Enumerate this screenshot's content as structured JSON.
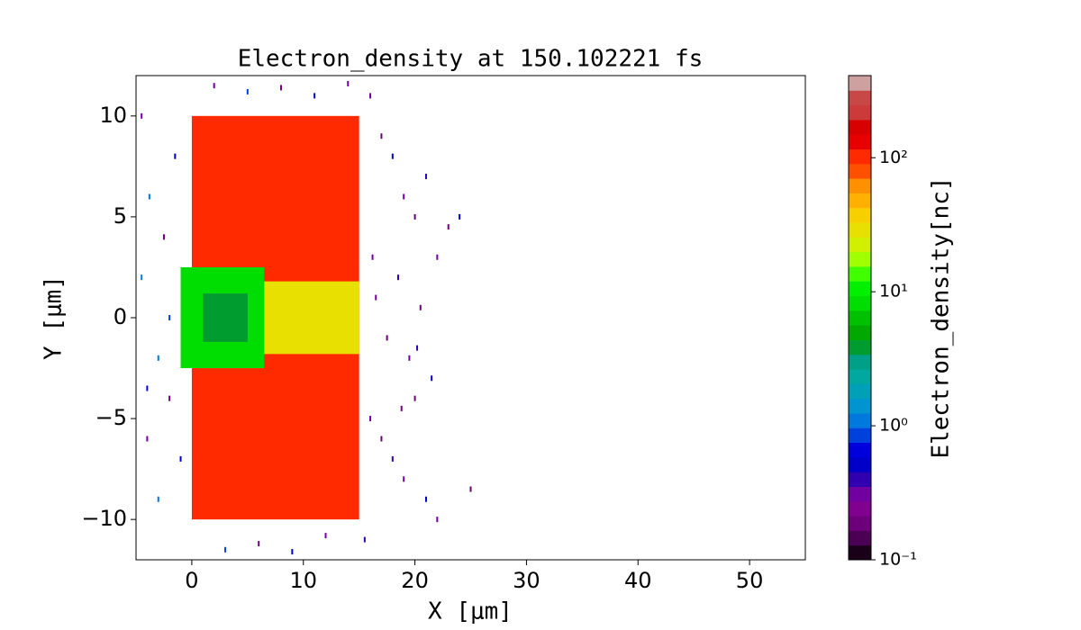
{
  "chart_data": {
    "type": "heatmap",
    "title": "Electron_density at 150.102221 fs",
    "x_label": "X [μm]",
    "y_label": "Y [μm]",
    "colorbar_label": "Electron_density[nc]",
    "xlim": [
      -5,
      55
    ],
    "xticks": [
      0,
      10,
      20,
      30,
      40,
      50
    ],
    "ylim": [
      -12,
      12
    ],
    "yticks": [
      {
        "value": -10,
        "label": "−10"
      },
      {
        "value": -5,
        "label": "−5"
      },
      0,
      5,
      10
    ],
    "clim": [
      0.1,
      410
    ],
    "cscale": "log",
    "cticks": [
      {
        "value": 0.1,
        "label": "10⁻¹"
      },
      {
        "value": 1,
        "label": "10⁰"
      },
      {
        "value": 10,
        "label": "10¹"
      },
      {
        "value": 100,
        "label": "10²"
      }
    ],
    "colors": [
      "#1a0018",
      "#4b0055",
      "#6d007a",
      "#810090",
      "#7000a0",
      "#3000b0",
      "#0000c8",
      "#0000dd",
      "#0040dd",
      "#0078dd",
      "#0095d0",
      "#00a0b8",
      "#00a8a0",
      "#00a088",
      "#009c30",
      "#00a800",
      "#00c000",
      "#00dd00",
      "#00f000",
      "#40ff00",
      "#a0ff00",
      "#d0f000",
      "#e8e000",
      "#f8d000",
      "#ffb000",
      "#ff9000",
      "#ff5000",
      "#ff2a00",
      "#e80000",
      "#d80000",
      "#cc3a3a",
      "#c84848",
      "#cfa0a0"
    ],
    "regions": [
      {
        "x": [
          0,
          15
        ],
        "y": [
          -10,
          10
        ],
        "value": 100
      },
      {
        "x": [
          6,
          15
        ],
        "y": [
          -1.8,
          1.8
        ],
        "value": 30
      },
      {
        "x": [
          -1,
          6.5
        ],
        "y": [
          -2.5,
          2.5
        ],
        "value": 8
      },
      {
        "x": [
          1,
          5
        ],
        "y": [
          -1.2,
          1.2
        ],
        "value": 4
      }
    ],
    "particles": {
      "x": [
        -4.5,
        -3.8,
        -2.5,
        -1.5,
        -4,
        -3,
        -2,
        -1,
        16,
        17,
        18,
        19,
        20,
        21,
        22,
        23,
        24,
        16.5,
        17.5,
        18.5,
        19.5,
        20.5,
        21.5,
        16,
        17,
        18,
        19,
        20,
        21,
        22,
        25,
        15.5,
        2,
        5,
        8,
        11,
        14,
        3,
        6,
        9,
        12,
        -4.5,
        -3,
        -2,
        -4,
        16.2,
        18.8,
        20.2
      ],
      "y": [
        10,
        6,
        4,
        8,
        -6,
        -9,
        -4,
        -7,
        11,
        9,
        8,
        6,
        5,
        7,
        3,
        4.5,
        5,
        1,
        -1,
        2,
        -2,
        0.5,
        -3,
        -5,
        -6,
        -7,
        -8,
        -4,
        -9,
        -10,
        -8.5,
        -11,
        11.5,
        11.2,
        11.4,
        11,
        11.6,
        -11.5,
        -11.2,
        -11.6,
        -10.8,
        2,
        -2,
        0,
        -3.5,
        3,
        -4.5,
        -1.5
      ],
      "values": [
        0.3,
        1,
        0.2,
        0.5,
        0.3,
        1,
        0.2,
        0.5,
        0.3,
        0.2,
        0.5,
        0.3,
        0.2,
        0.4,
        0.3,
        0.2,
        0.5,
        0.3,
        0.2,
        0.4,
        0.3,
        0.2,
        0.5,
        0.3,
        0.2,
        0.4,
        0.3,
        0.2,
        0.5,
        0.3,
        0.2,
        0.4,
        0.3,
        0.8,
        0.2,
        0.5,
        0.3,
        0.8,
        0.2,
        0.5,
        0.3,
        1,
        1.2,
        0.8,
        0.6,
        0.3,
        0.2,
        0.4
      ]
    }
  }
}
